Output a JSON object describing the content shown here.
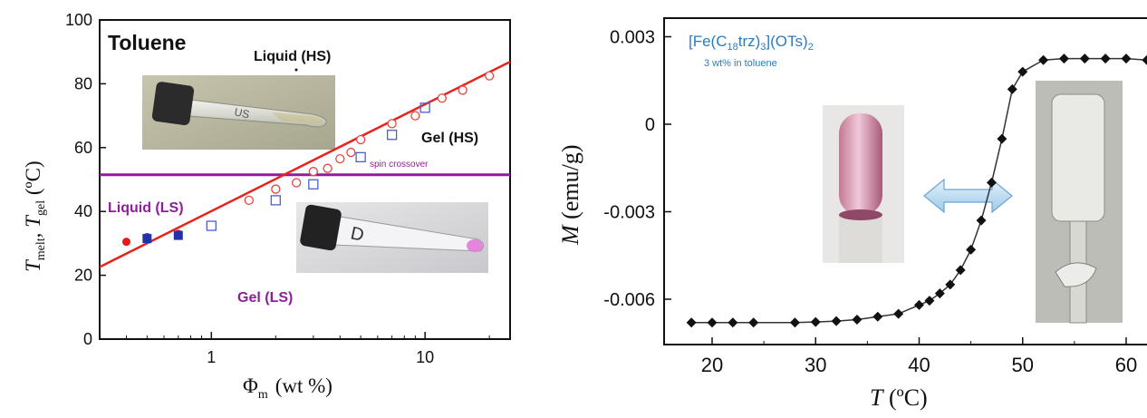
{
  "chart_data": [
    {
      "type": "scatter",
      "title": "Toluene",
      "xlabel_main": "Φ",
      "xlabel_sub": "m",
      "xlabel_unit": "(wt %)",
      "ylabel_t1": "T",
      "ylabel_s1": "melt",
      "ylabel_sep": ", ",
      "ylabel_t2": "T",
      "ylabel_s2": "gel",
      "ylabel_unit": " (ºC)",
      "x_scale": "log",
      "xlim": [
        0.3,
        25
      ],
      "ylim": [
        0,
        100
      ],
      "x_ticks": [
        1,
        10
      ],
      "x_tick_labels": [
        "1",
        "10"
      ],
      "y_ticks": [
        0,
        20,
        40,
        60,
        80,
        100
      ],
      "y_tick_labels": [
        "0",
        "20",
        "40",
        "60",
        "80",
        "100"
      ],
      "grid": false,
      "annotations": [
        "Liquid (HS)",
        "Gel (HS)",
        "Liquid (LS)",
        "Gel (LS)",
        "spin crossover"
      ],
      "spin_crossover_level": 51.5,
      "fit_line": {
        "x": [
          0.3,
          25
        ],
        "y": [
          22.6,
          86.9
        ]
      },
      "series": [
        {
          "marker": "open-circle",
          "color": "#e8453c",
          "x": [
            1.5,
            2.0,
            2.5,
            3.0,
            3.5,
            4.0,
            4.5,
            5.0,
            7.0,
            9.0,
            12.0,
            15.0,
            20.0
          ],
          "y": [
            43.5,
            47,
            49,
            52.5,
            53.5,
            56.5,
            58.5,
            62.5,
            67.5,
            70,
            75.5,
            78,
            82.5
          ]
        },
        {
          "marker": "open-square",
          "color": "#4a5fd6",
          "x": [
            1.0,
            2.0,
            3.0,
            5.0,
            7.0,
            10.0
          ],
          "y": [
            35.5,
            43.5,
            48.5,
            57,
            64,
            72.5
          ]
        },
        {
          "marker": "filled-circle",
          "color": "#e81818",
          "x": [
            0.4,
            0.5,
            0.7
          ],
          "y": [
            30.5,
            32,
            33
          ]
        },
        {
          "marker": "filled-square",
          "color": "#2233aa",
          "x": [
            0.5,
            0.7
          ],
          "y": [
            31.5,
            32.5
          ]
        }
      ]
    },
    {
      "type": "line",
      "compound_prefix": "[Fe(C",
      "compound_sub": "18",
      "compound_mid": "trz)",
      "compound_sub2": "3",
      "compound_suffix": "](OTs)",
      "compound_sub3": "2",
      "subtitle": "3 wt% in toluene",
      "xlabel_main": "T",
      "xlabel_unit": " (ºC)",
      "ylabel_main": "M",
      "ylabel_unit": " (emu/g)",
      "xlim": [
        16,
        64
      ],
      "ylim": [
        -0.0075,
        0.0035
      ],
      "x_ticks": [
        20,
        30,
        40,
        50,
        60
      ],
      "x_tick_labels": [
        "20",
        "30",
        "40",
        "50",
        "60"
      ],
      "y_ticks": [
        0.003,
        0,
        -0.003,
        -0.006
      ],
      "y_tick_labels": [
        "0.003",
        "0",
        "-0.003",
        "-0.006"
      ],
      "grid": false,
      "series": [
        {
          "marker": "diamond",
          "color": "#111111",
          "x": [
            18,
            20,
            22,
            24,
            28,
            30,
            32,
            34,
            36,
            38,
            40,
            41,
            42,
            43,
            44,
            45,
            46,
            47,
            48,
            49,
            50,
            52,
            54,
            56,
            58,
            60,
            62,
            64
          ],
          "y": [
            -0.0068,
            -0.0068,
            -0.0068,
            -0.0068,
            -0.0068,
            -0.00678,
            -0.00675,
            -0.0067,
            -0.0066,
            -0.0065,
            -0.0062,
            -0.00605,
            -0.0058,
            -0.0055,
            -0.005,
            -0.0043,
            -0.0033,
            -0.002,
            -0.0005,
            0.0012,
            0.0018,
            0.0022,
            0.00225,
            0.00225,
            0.00225,
            0.00225,
            0.0022,
            0.0021
          ]
        }
      ]
    }
  ]
}
